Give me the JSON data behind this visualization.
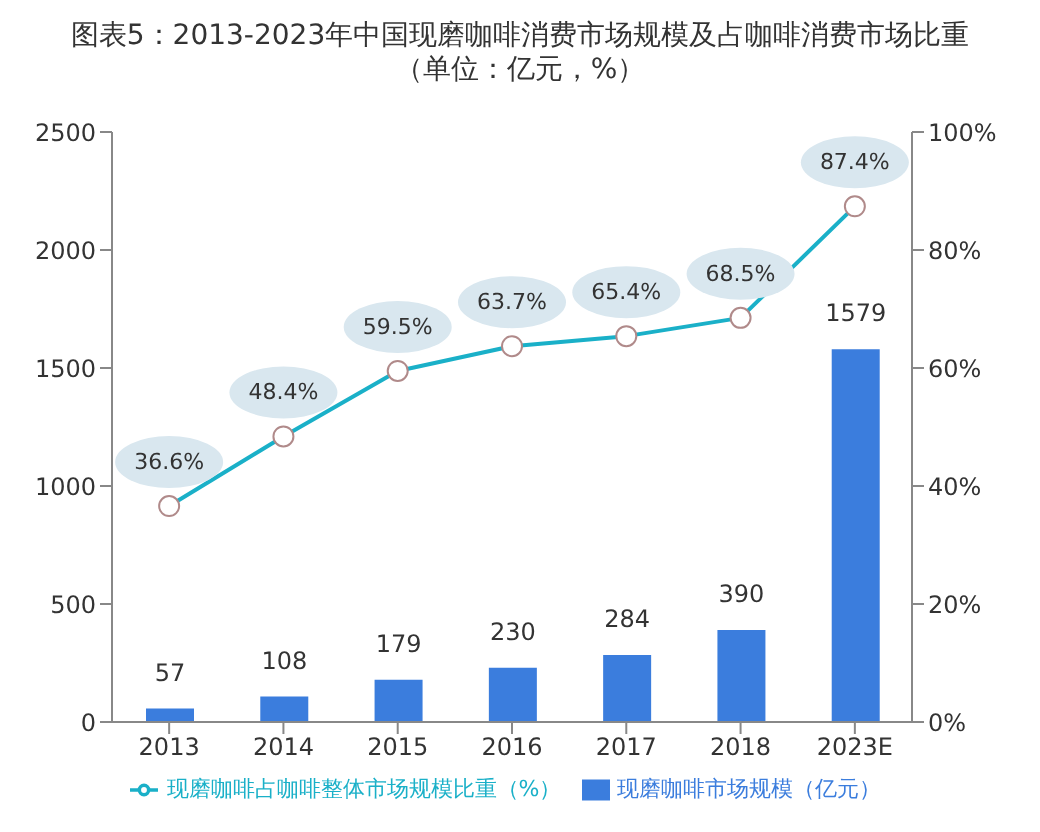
{
  "chart_data": {
    "type": "bar",
    "title": "图表5：2013-2023年中国现磨咖啡消费市场规模及占咖啡消费市场比重（单位：亿元，%）",
    "categories": [
      "2013",
      "2014",
      "2015",
      "2016",
      "2017",
      "2018",
      "2023E"
    ],
    "series": [
      {
        "name": "现磨咖啡市场规模（亿元）",
        "color": "#3b7ddd",
        "values": [
          57,
          108,
          179,
          230,
          284,
          390,
          1579
        ]
      },
      {
        "name": "现磨咖啡占咖啡整体市场规模比重（%）",
        "type": "line",
        "axis": "y2",
        "color": "#1ab0c8",
        "values": [
          36.6,
          48.4,
          59.5,
          63.7,
          65.4,
          68.5,
          87.4
        ],
        "value_labels": [
          "36.6%",
          "48.4%",
          "59.5%",
          "63.7%",
          "65.4%",
          "68.5%",
          "87.4%"
        ]
      }
    ],
    "data_labels": true,
    "ylim": [
      0,
      2500
    ],
    "yticks": [
      0,
      500,
      1000,
      1500,
      2000,
      2500
    ],
    "y2lim": [
      0,
      100
    ],
    "y2ticks": [
      {
        "value": 0,
        "label": "0%"
      },
      {
        "value": 20,
        "label": "20%"
      },
      {
        "value": 40,
        "label": "40%"
      },
      {
        "value": 60,
        "label": "60%"
      },
      {
        "value": 80,
        "label": "80%"
      },
      {
        "value": 100,
        "label": "100%"
      }
    ],
    "marker": "circle",
    "line_style": "solid",
    "legend": "bottom"
  }
}
